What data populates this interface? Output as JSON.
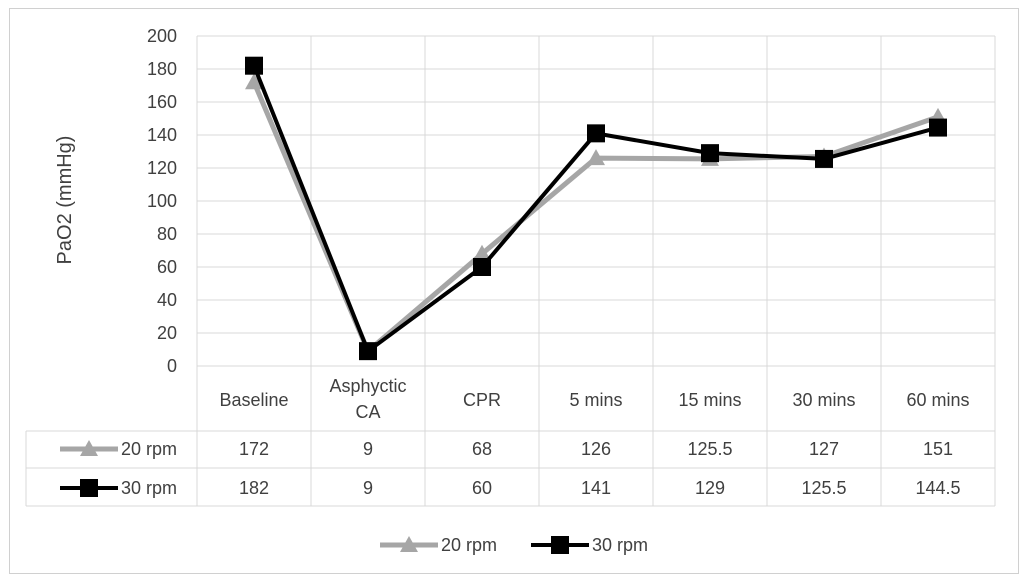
{
  "chart_data": {
    "type": "line",
    "ylabel": "PaO2 (mmHg)",
    "ylim": [
      0,
      200
    ],
    "yticks": [
      "0",
      "20",
      "40",
      "60",
      "80",
      "100",
      "120",
      "140",
      "160",
      "180",
      "200"
    ],
    "grid": true,
    "legend_position": "bottom",
    "categories": [
      [
        "Baseline"
      ],
      [
        "Asphyctic",
        "CA"
      ],
      [
        "CPR"
      ],
      [
        "5 mins"
      ],
      [
        "15 mins"
      ],
      [
        "30 mins"
      ],
      [
        "60 mins"
      ]
    ],
    "series": [
      {
        "name": "20 rpm",
        "color": "#a6a6a6",
        "marker": "triangle",
        "values": [
          172,
          9,
          68,
          126,
          125.5,
          127,
          151
        ],
        "labels": [
          "172",
          "9",
          "68",
          "126",
          "125.5",
          "127",
          "151"
        ]
      },
      {
        "name": "30 rpm",
        "color": "#000000",
        "marker": "square",
        "values": [
          182,
          9,
          60,
          141,
          129,
          125.5,
          144.5
        ],
        "labels": [
          "182",
          "9",
          "60",
          "141",
          "129",
          "125.5",
          "144.5"
        ]
      }
    ]
  }
}
